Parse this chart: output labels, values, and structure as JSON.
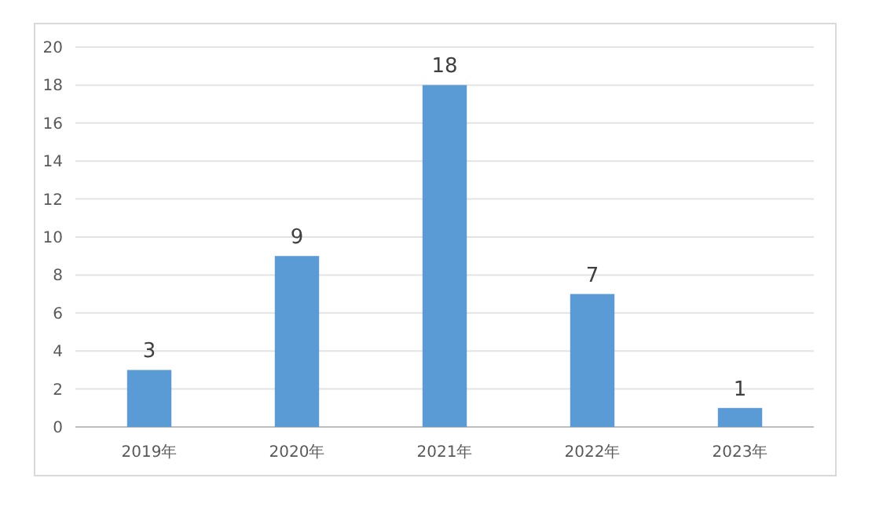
{
  "chart_data": {
    "type": "bar",
    "categories": [
      "2019年",
      "2020年",
      "2021年",
      "2022年",
      "2023年"
    ],
    "values": [
      3,
      9,
      18,
      7,
      1
    ],
    "color": "#5b9bd5",
    "ylim": [
      0,
      20
    ],
    "yticks": [
      0,
      2,
      4,
      6,
      8,
      10,
      12,
      14,
      16,
      18,
      20
    ],
    "grid": "y",
    "data_labels": true
  }
}
